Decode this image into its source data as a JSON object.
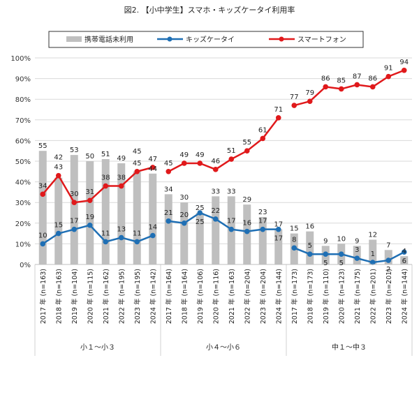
{
  "chart_data": {
    "type": "bar+line",
    "title": "図2. 【小中学生】スマホ・キッズケータイ利用率",
    "ylim": [
      0,
      100
    ],
    "yticks": [
      "0%",
      "10%",
      "20%",
      "30%",
      "40%",
      "50%",
      "60%",
      "70%",
      "80%",
      "90%",
      "100%"
    ],
    "grid": true,
    "legend_position": "top",
    "groups": [
      {
        "label": "小１～小３",
        "categories": [
          "2017 年 (n=163)",
          "2018 年 (n=163)",
          "2019 年 (n=104)",
          "2020 年 (n=115)",
          "2021 年 (n=162)",
          "2022 年 (n=195)",
          "2023 年 (n=195)",
          "2024 年 (n=142)"
        ]
      },
      {
        "label": "小４～小６",
        "categories": [
          "2017 年 (n=164)",
          "2018 年 (n=164)",
          "2019 年 (n=106)",
          "2020 年 (n=116)",
          "2021 年 (n=163)",
          "2022 年 (n=204)",
          "2023 年 (n=204)",
          "2024 年 (n=144)"
        ]
      },
      {
        "label": "中１～中３",
        "categories": [
          "2017 年 (n=173)",
          "2018 年 (n=173)",
          "2019 年 (n=110)",
          "2020 年 (n=123)",
          "2021 年 (n=175)",
          "2022 年 (n=201)",
          "2023 年 (n=201)",
          "2024 年 (n=144)"
        ]
      }
    ],
    "series": [
      {
        "name": "携帯電話未利用",
        "type": "bar",
        "color": "#bfbfbf",
        "values": [
          [
            55,
            42,
            53,
            50,
            51,
            49,
            45,
            44
          ],
          [
            34,
            30,
            25,
            33,
            33,
            29,
            23,
            17
          ],
          [
            15,
            16,
            9,
            10,
            9,
            12,
            7,
            4
          ]
        ]
      },
      {
        "name": "キッズケータイ",
        "type": "line",
        "color": "#1f6fb4",
        "values": [
          [
            10,
            15,
            17,
            19,
            11,
            13,
            11,
            14
          ],
          [
            21,
            20,
            25,
            22,
            17,
            16,
            17,
            17
          ],
          [
            8,
            5,
            5,
            5,
            3,
            1,
            2,
            6
          ]
        ]
      },
      {
        "name": "スマートフォン",
        "type": "line",
        "color": "#e0191b",
        "values": [
          [
            34,
            43,
            30,
            31,
            38,
            38,
            45,
            47
          ],
          [
            45,
            49,
            49,
            46,
            51,
            55,
            61,
            71
          ],
          [
            77,
            79,
            86,
            85,
            87,
            86,
            91,
            94
          ]
        ]
      }
    ]
  }
}
